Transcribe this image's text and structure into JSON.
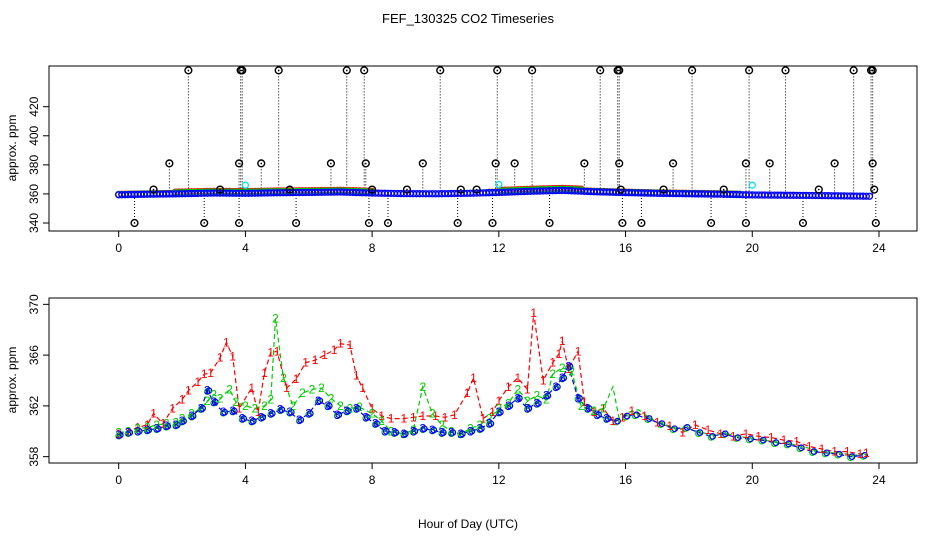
{
  "title": "FEF_130325  CO2 Timeseries",
  "chart_data": [
    {
      "type": "scatter",
      "ylabel": "approx. ppm",
      "xlim": [
        -2.2,
        25.2
      ],
      "ylim": [
        334.5,
        448
      ],
      "xticks": [
        "0",
        "4",
        "8",
        "12",
        "16",
        "20",
        "24"
      ],
      "yticks": [
        "340",
        "360",
        "380",
        "400",
        "420"
      ],
      "ytick_values": [
        340,
        360,
        380,
        400,
        420
      ],
      "colors": {
        "ch1": "#ff0000",
        "ch2": "#00cd00",
        "ch3": "#0000ff",
        "flag": "#000000",
        "cyan": "#00e5ee"
      },
      "baseline": [
        [
          0,
          359.4
        ],
        [
          1,
          359.8
        ],
        [
          2,
          360.1
        ],
        [
          3,
          360.6
        ],
        [
          4,
          360.4
        ],
        [
          5,
          360.8
        ],
        [
          6,
          361.0
        ],
        [
          7,
          361.3
        ],
        [
          8,
          360.6
        ],
        [
          9,
          360.2
        ],
        [
          10,
          360.1
        ],
        [
          11,
          360.4
        ],
        [
          12,
          361.0
        ],
        [
          13,
          361.8
        ],
        [
          14,
          362.4
        ],
        [
          15,
          361.5
        ],
        [
          16,
          360.9
        ],
        [
          17,
          360.4
        ],
        [
          18,
          360.1
        ],
        [
          19,
          359.8
        ],
        [
          20,
          359.3
        ],
        [
          21,
          359.1
        ],
        [
          22,
          358.9
        ],
        [
          23,
          358.6
        ],
        [
          23.7,
          358.4
        ]
      ],
      "flags_high": [
        2.2,
        3.85,
        3.9,
        5.05,
        7.2,
        7.75,
        10.15,
        11.95,
        13.05,
        15.2,
        15.75,
        15.8,
        18.1,
        19.9,
        21.05,
        23.2,
        23.75,
        23.8
      ],
      "flags_mid": [
        1.6,
        3.8,
        4.5,
        6.7,
        7.8,
        9.6,
        11.9,
        12.5,
        14.7,
        15.8,
        17.5,
        19.8,
        20.55,
        22.6,
        23.8
      ],
      "flags_low": [
        0.5,
        2.7,
        3.8,
        5.6,
        7.9,
        8.5,
        10.7,
        11.8,
        13.6,
        15.9,
        16.5,
        18.7,
        19.8,
        21.6,
        23.9
      ],
      "flags_near": [
        1.1,
        3.2,
        5.4,
        8.0,
        9.1,
        10.8,
        11.3,
        15.85,
        17.2,
        19.1,
        22.1,
        23.85
      ],
      "high_value": 445,
      "mid_value": 381,
      "low_value": 340,
      "near_value": 363,
      "cyan_points": [
        [
          4.0,
          366
        ],
        [
          12.0,
          366.5
        ],
        [
          20.0,
          366
        ]
      ]
    },
    {
      "type": "line",
      "ylabel": "approx. ppm",
      "xlabel": "Hour of Day (UTC)",
      "xlim": [
        -2.2,
        25.2
      ],
      "ylim": [
        357.5,
        370.5
      ],
      "xticks": [
        "0",
        "4",
        "8",
        "12",
        "16",
        "20",
        "24"
      ],
      "yticks": [
        "358",
        "362",
        "366",
        "370"
      ],
      "ytick_values": [
        358,
        362,
        366,
        370
      ],
      "series": [
        {
          "marker": "1",
          "color": "#ff0000",
          "values": [
            [
              0,
              359.8
            ],
            [
              0.3,
              360.0
            ],
            [
              0.6,
              360.3
            ],
            [
              0.9,
              360.5
            ],
            [
              1.1,
              361.4
            ],
            [
              1.4,
              360.6
            ],
            [
              1.7,
              361.8
            ],
            [
              2.0,
              362.5
            ],
            [
              2.2,
              363.2
            ],
            [
              2.5,
              363.9
            ],
            [
              2.7,
              364.5
            ],
            [
              2.9,
              364.6
            ],
            [
              3.2,
              365.8
            ],
            [
              3.4,
              367.0
            ],
            [
              3.6,
              365.9
            ],
            [
              3.8,
              361.8
            ],
            [
              4.2,
              363.4
            ],
            [
              4.4,
              361.5
            ],
            [
              4.6,
              364.6
            ],
            [
              4.8,
              366.2
            ],
            [
              5.0,
              366.3
            ],
            [
              5.3,
              363.4
            ],
            [
              5.6,
              364.1
            ],
            [
              5.9,
              365.4
            ],
            [
              6.2,
              365.6
            ],
            [
              6.5,
              366.0
            ],
            [
              6.8,
              366.4
            ],
            [
              7.0,
              366.9
            ],
            [
              7.3,
              366.8
            ],
            [
              7.5,
              364.4
            ],
            [
              7.7,
              363.4
            ],
            [
              8.0,
              361.8
            ],
            [
              8.3,
              361.2
            ],
            [
              8.6,
              361.0
            ],
            [
              9.0,
              361.0
            ],
            [
              9.3,
              361.1
            ],
            [
              9.6,
              361.2
            ],
            [
              10.0,
              361.2
            ],
            [
              10.3,
              361.1
            ],
            [
              10.6,
              361.3
            ],
            [
              11.0,
              363.0
            ],
            [
              11.2,
              364.2
            ],
            [
              11.5,
              361.0
            ],
            [
              11.8,
              361.5
            ],
            [
              12.0,
              362.4
            ],
            [
              12.3,
              363.5
            ],
            [
              12.6,
              364.2
            ],
            [
              12.9,
              363.3
            ],
            [
              13.1,
              369.3
            ],
            [
              13.4,
              364.0
            ],
            [
              13.7,
              365.4
            ],
            [
              13.9,
              366.1
            ],
            [
              14.0,
              367.1
            ],
            [
              14.2,
              364.9
            ],
            [
              14.5,
              366.3
            ],
            [
              14.7,
              362.3
            ],
            [
              15.0,
              361.5
            ],
            [
              15.3,
              361.8
            ],
            [
              15.6,
              360.8
            ],
            [
              15.9,
              361.1
            ],
            [
              16.2,
              361.6
            ],
            [
              16.6,
              361.2
            ],
            [
              17.0,
              360.7
            ],
            [
              17.4,
              360.4
            ],
            [
              17.8,
              359.9
            ],
            [
              18.2,
              360.5
            ],
            [
              18.6,
              360.1
            ],
            [
              19.0,
              359.8
            ],
            [
              19.4,
              359.6
            ],
            [
              19.8,
              359.8
            ],
            [
              20.2,
              359.6
            ],
            [
              20.6,
              359.5
            ],
            [
              21.0,
              359.3
            ],
            [
              21.4,
              359.2
            ],
            [
              21.8,
              358.8
            ],
            [
              22.2,
              358.6
            ],
            [
              22.6,
              358.4
            ],
            [
              23.0,
              358.4
            ],
            [
              23.4,
              358.2
            ],
            [
              23.6,
              358.3
            ]
          ]
        },
        {
          "marker": "2",
          "color": "#00cd00",
          "values": [
            [
              0,
              359.9
            ],
            [
              0.3,
              360.0
            ],
            [
              0.6,
              360.2
            ],
            [
              0.9,
              360.3
            ],
            [
              1.2,
              360.5
            ],
            [
              1.5,
              360.6
            ],
            [
              1.8,
              360.7
            ],
            [
              2.0,
              361.0
            ],
            [
              2.3,
              361.4
            ],
            [
              2.6,
              361.8
            ],
            [
              2.8,
              362.4
            ],
            [
              3.0,
              362.9
            ],
            [
              3.2,
              362.6
            ],
            [
              3.5,
              363.3
            ],
            [
              3.7,
              362.3
            ],
            [
              4.0,
              362.0
            ],
            [
              4.3,
              361.8
            ],
            [
              4.6,
              362.0
            ],
            [
              4.8,
              362.5
            ],
            [
              4.95,
              368.9
            ],
            [
              5.2,
              364.2
            ],
            [
              5.5,
              362.0
            ],
            [
              5.8,
              363.0
            ],
            [
              6.1,
              363.3
            ],
            [
              6.4,
              363.4
            ],
            [
              6.7,
              362.6
            ],
            [
              7.0,
              362.0
            ],
            [
              7.3,
              361.8
            ],
            [
              7.6,
              361.9
            ],
            [
              8.0,
              361.4
            ],
            [
              8.3,
              360.8
            ],
            [
              8.6,
              360.0
            ],
            [
              9.0,
              359.8
            ],
            [
              9.3,
              360.1
            ],
            [
              9.6,
              363.5
            ],
            [
              9.9,
              361.4
            ],
            [
              10.2,
              360.5
            ],
            [
              10.5,
              360.0
            ],
            [
              10.8,
              359.8
            ],
            [
              11.1,
              360.2
            ],
            [
              11.4,
              360.5
            ],
            [
              11.7,
              361.0
            ],
            [
              12.0,
              361.8
            ],
            [
              12.3,
              362.2
            ],
            [
              12.6,
              363.3
            ],
            [
              12.9,
              362.4
            ],
            [
              13.2,
              362.8
            ],
            [
              13.5,
              362.5
            ],
            [
              13.7,
              364.5
            ],
            [
              14.0,
              365.0
            ],
            [
              14.3,
              364.7
            ],
            [
              14.6,
              362.0
            ],
            [
              15.0,
              361.6
            ],
            [
              15.3,
              361.8
            ],
            [
              15.6,
              363.5
            ],
            [
              15.8,
              361.0
            ],
            [
              16.1,
              361.5
            ],
            [
              16.4,
              361.7
            ],
            [
              16.8,
              361.0
            ],
            [
              17.2,
              360.5
            ],
            [
              17.6,
              360.2
            ],
            [
              18.0,
              360.2
            ],
            [
              18.4,
              359.9
            ],
            [
              18.8,
              359.7
            ],
            [
              19.2,
              359.8
            ],
            [
              19.6,
              359.6
            ],
            [
              20.0,
              359.4
            ],
            [
              20.4,
              359.3
            ],
            [
              20.8,
              359.1
            ],
            [
              21.2,
              359.0
            ],
            [
              21.6,
              358.8
            ],
            [
              22.0,
              358.5
            ],
            [
              22.4,
              358.3
            ],
            [
              22.8,
              358.3
            ],
            [
              23.2,
              358.1
            ],
            [
              23.5,
              358.2
            ]
          ]
        },
        {
          "marker": "3",
          "color": "#0000ff",
          "values": [
            [
              0,
              359.7
            ],
            [
              0.3,
              359.9
            ],
            [
              0.6,
              360.0
            ],
            [
              0.9,
              360.1
            ],
            [
              1.2,
              360.2
            ],
            [
              1.5,
              360.4
            ],
            [
              1.8,
              360.5
            ],
            [
              2.0,
              360.8
            ],
            [
              2.3,
              361.2
            ],
            [
              2.6,
              361.8
            ],
            [
              2.8,
              363.2
            ],
            [
              3.0,
              362.3
            ],
            [
              3.3,
              361.5
            ],
            [
              3.6,
              361.6
            ],
            [
              3.9,
              361.0
            ],
            [
              4.2,
              360.8
            ],
            [
              4.5,
              361.1
            ],
            [
              4.8,
              361.4
            ],
            [
              5.1,
              361.7
            ],
            [
              5.4,
              361.5
            ],
            [
              5.7,
              360.9
            ],
            [
              6.0,
              361.4
            ],
            [
              6.3,
              362.4
            ],
            [
              6.6,
              362.0
            ],
            [
              6.9,
              361.3
            ],
            [
              7.2,
              361.6
            ],
            [
              7.5,
              361.8
            ],
            [
              7.8,
              361.1
            ],
            [
              8.1,
              360.6
            ],
            [
              8.4,
              360.0
            ],
            [
              8.7,
              359.9
            ],
            [
              9.0,
              359.8
            ],
            [
              9.3,
              360.0
            ],
            [
              9.6,
              360.2
            ],
            [
              9.9,
              360.1
            ],
            [
              10.2,
              359.9
            ],
            [
              10.5,
              359.9
            ],
            [
              10.8,
              359.8
            ],
            [
              11.1,
              360.0
            ],
            [
              11.4,
              360.2
            ],
            [
              11.7,
              360.6
            ],
            [
              12.0,
              361.5
            ],
            [
              12.3,
              362.0
            ],
            [
              12.6,
              362.6
            ],
            [
              12.9,
              361.8
            ],
            [
              13.2,
              362.2
            ],
            [
              13.5,
              362.8
            ],
            [
              13.8,
              363.5
            ],
            [
              14.0,
              364.2
            ],
            [
              14.2,
              365.1
            ],
            [
              14.5,
              362.6
            ],
            [
              14.8,
              361.8
            ],
            [
              15.1,
              361.3
            ],
            [
              15.4,
              361.0
            ],
            [
              15.7,
              360.8
            ],
            [
              16.0,
              361.2
            ],
            [
              16.3,
              361.3
            ],
            [
              16.7,
              361.0
            ],
            [
              17.1,
              360.6
            ],
            [
              17.5,
              360.2
            ],
            [
              17.9,
              360.3
            ],
            [
              18.3,
              359.9
            ],
            [
              18.7,
              359.6
            ],
            [
              19.1,
              359.8
            ],
            [
              19.5,
              359.5
            ],
            [
              19.9,
              359.4
            ],
            [
              20.3,
              359.3
            ],
            [
              20.7,
              359.1
            ],
            [
              21.1,
              359.0
            ],
            [
              21.5,
              358.7
            ],
            [
              21.9,
              358.4
            ],
            [
              22.3,
              358.3
            ],
            [
              22.7,
              358.2
            ],
            [
              23.1,
              358.0
            ],
            [
              23.5,
              358.1
            ]
          ]
        }
      ]
    }
  ]
}
